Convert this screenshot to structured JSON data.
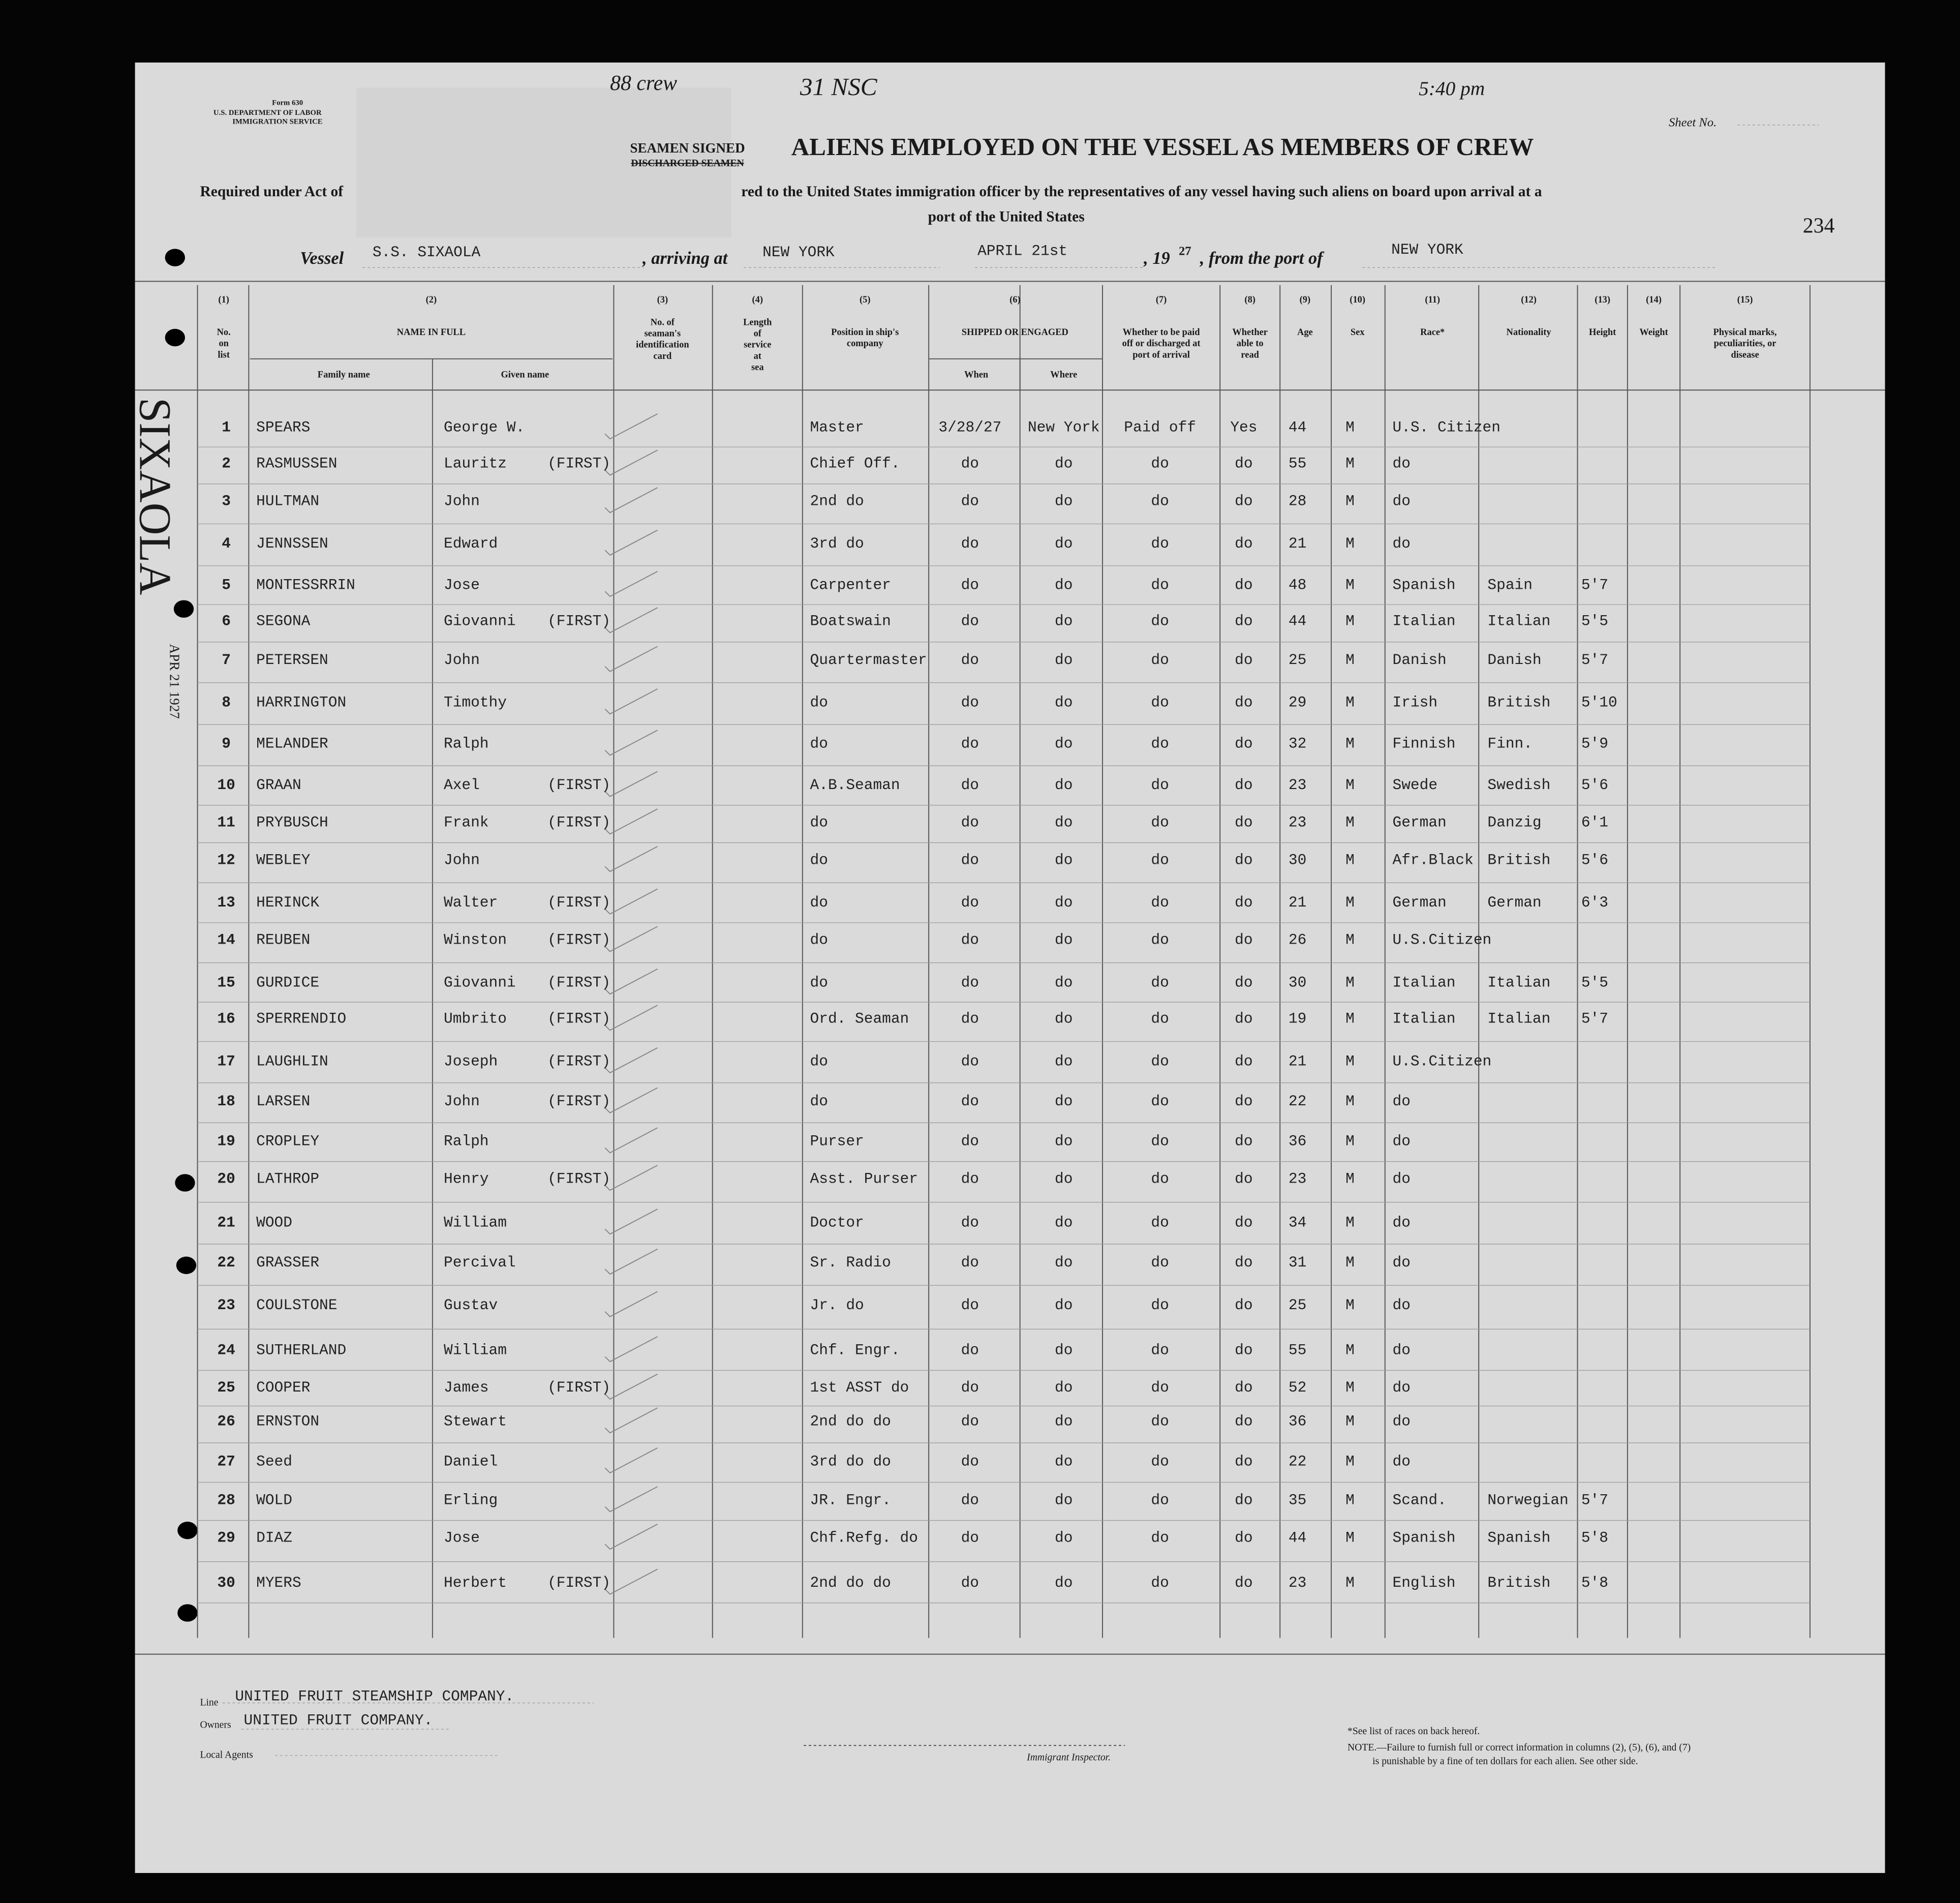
{
  "header": {
    "form": [
      "Form 630",
      "U.S. DEPARTMENT OF LABOR",
      "IMMIGRATION SERVICE"
    ],
    "stamp": [
      "SEAMEN SIGNED",
      "DISCHARGED SEAMEN"
    ],
    "title": "ALIENS EMPLOYED ON THE VESSEL AS MEMBERS OF CREW",
    "required": "Required under Act of",
    "subtitle": "red to the United States immigration officer by the representatives of any vessel having such aliens on board upon arrival at a",
    "subtitle2": "port of the United States",
    "sheet": "Sheet No.",
    "page_number": "234",
    "handwritten": [
      "88 crew",
      "31 NSC",
      "5:40 pm"
    ]
  },
  "vessel": {
    "label": "Vessel",
    "name": "S.S. SIXAOLA",
    "arriving_label": ", arriving at",
    "port": "NEW YORK",
    "date": "APRIL 21st",
    "year_label": ", 19",
    "year": "27",
    "from_label": ", from the port of",
    "from_port": "NEW YORK"
  },
  "margin": {
    "ship": "SIXAOLA",
    "date": "APR 21 1927"
  },
  "columns": [
    {
      "num": "(1)",
      "label": [
        "No.",
        "on",
        "list"
      ]
    },
    {
      "num": "(2)",
      "label": [
        "NAME IN FULL"
      ],
      "subs": [
        "Family name",
        "Given name"
      ]
    },
    {
      "num": "(3)",
      "label": [
        "No. of",
        "seaman's",
        "identification",
        "card"
      ]
    },
    {
      "num": "(4)",
      "label": [
        "Length",
        "of",
        "service",
        "at",
        "sea"
      ]
    },
    {
      "num": "(5)",
      "label": [
        "Position in ship's",
        "company"
      ]
    },
    {
      "num": "(6)",
      "label": [
        "SHIPPED OR ENGAGED"
      ],
      "subs": [
        "When",
        "Where"
      ]
    },
    {
      "num": "(7)",
      "label": [
        "Whether to be paid",
        "off or discharged at",
        "port of arrival"
      ]
    },
    {
      "num": "(8)",
      "label": [
        "Whether",
        "able to",
        "read"
      ]
    },
    {
      "num": "(9)",
      "label": [
        "Age"
      ]
    },
    {
      "num": "(10)",
      "label": [
        "Sex"
      ]
    },
    {
      "num": "(11)",
      "label": [
        "Race*"
      ]
    },
    {
      "num": "(12)",
      "label": [
        "Nationality"
      ]
    },
    {
      "num": "(13)",
      "label": [
        "Height"
      ]
    },
    {
      "num": "(14)",
      "label": [
        "Weight"
      ]
    },
    {
      "num": "(15)",
      "label": [
        "Physical marks,",
        "peculiarities, or",
        "disease"
      ]
    }
  ],
  "rows": [
    {
      "no": "1",
      "family": "SPEARS",
      "given": "George W.",
      "position": "Master",
      "when": "3/28/27",
      "where": "New York",
      "paid": "Paid off",
      "read": "Yes",
      "age": "44",
      "sex": "M",
      "race": "U.S. Citizen"
    },
    {
      "no": "2",
      "family": "RASMUSSEN",
      "given": "Lauritz",
      "first": "(FIRST)",
      "position": "Chief Off.",
      "when": "do",
      "where": "do",
      "paid": "do",
      "read": "do",
      "age": "55",
      "sex": "M",
      "race": "do"
    },
    {
      "no": "3",
      "family": "HULTMAN",
      "given": "John",
      "position": "2nd  do",
      "when": "do",
      "where": "do",
      "paid": "do",
      "read": "do",
      "age": "28",
      "sex": "M",
      "race": "do"
    },
    {
      "no": "4",
      "family": "JENNSSEN",
      "given": "Edward",
      "position": "3rd  do",
      "when": "do",
      "where": "do",
      "paid": "do",
      "read": "do",
      "age": "21",
      "sex": "M",
      "race": "do"
    },
    {
      "no": "5",
      "family": "MONTESSRRIN",
      "given": "Jose",
      "position": "Carpenter",
      "when": "do",
      "where": "do",
      "paid": "do",
      "read": "do",
      "age": "48",
      "sex": "M",
      "race": "Spanish",
      "nationality": "Spain",
      "height": "5'7"
    },
    {
      "no": "6",
      "family": "SEGONA",
      "given": "Giovanni",
      "first": "(FIRST)",
      "position": "Boatswain",
      "when": "do",
      "where": "do",
      "paid": "do",
      "read": "do",
      "age": "44",
      "sex": "M",
      "race": "Italian",
      "nationality": "Italian",
      "height": "5'5"
    },
    {
      "no": "7",
      "family": "PETERSEN",
      "given": "John",
      "position": "Quartermaster",
      "when": "do",
      "where": "do",
      "paid": "do",
      "read": "do",
      "age": "25",
      "sex": "M",
      "race": "Danish",
      "nationality": "Danish",
      "height": "5'7"
    },
    {
      "no": "8",
      "family": "HARRINGTON",
      "given": "Timothy",
      "position": "do",
      "when": "do",
      "where": "do",
      "paid": "do",
      "read": "do",
      "age": "29",
      "sex": "M",
      "race": "Irish",
      "nationality": "British",
      "height": "5'10"
    },
    {
      "no": "9",
      "family": "MELANDER",
      "given": "Ralph",
      "position": "do",
      "when": "do",
      "where": "do",
      "paid": "do",
      "read": "do",
      "age": "32",
      "sex": "M",
      "race": "Finnish",
      "nationality": "Finn.",
      "height": "5'9"
    },
    {
      "no": "10",
      "family": "GRAAN",
      "given": "Axel",
      "first": "(FIRST)",
      "position": "A.B.Seaman",
      "when": "do",
      "where": "do",
      "paid": "do",
      "read": "do",
      "age": "23",
      "sex": "M",
      "race": "Swede",
      "nationality": "Swedish",
      "height": "5'6"
    },
    {
      "no": "11",
      "family": "PRYBUSCH",
      "given": "Frank",
      "first": "(FIRST)",
      "position": "do",
      "when": "do",
      "where": "do",
      "paid": "do",
      "read": "do",
      "age": "23",
      "sex": "M",
      "race": "German",
      "nationality": "Danzig",
      "height": "6'1"
    },
    {
      "no": "12",
      "family": "WEBLEY",
      "given": "John",
      "position": "do",
      "when": "do",
      "where": "do",
      "paid": "do",
      "read": "do",
      "age": "30",
      "sex": "M",
      "race": "Afr.Black",
      "nationality": "British",
      "height": "5'6"
    },
    {
      "no": "13",
      "family": "HERINCK",
      "given": "Walter",
      "first": "(FIRST)",
      "position": "do",
      "when": "do",
      "where": "do",
      "paid": "do",
      "read": "do",
      "age": "21",
      "sex": "M",
      "race": "German",
      "nationality": "German",
      "height": "6'3"
    },
    {
      "no": "14",
      "family": "REUBEN",
      "given": "Winston",
      "first": "(FIRST)",
      "position": "do",
      "when": "do",
      "where": "do",
      "paid": "do",
      "read": "do",
      "age": "26",
      "sex": "M",
      "race": "U.S.Citizen"
    },
    {
      "no": "15",
      "family": "GURDICE",
      "given": "Giovanni",
      "first": "(FIRST)",
      "position": "do",
      "when": "do",
      "where": "do",
      "paid": "do",
      "read": "do",
      "age": "30",
      "sex": "M",
      "race": "Italian",
      "nationality": "Italian",
      "height": "5'5"
    },
    {
      "no": "16",
      "family": "SPERRENDIO",
      "given": "Umbrito",
      "first": "(FIRST)",
      "position": "Ord. Seaman",
      "when": "do",
      "where": "do",
      "paid": "do",
      "read": "do",
      "age": "19",
      "sex": "M",
      "race": "Italian",
      "nationality": "Italian",
      "height": "5'7"
    },
    {
      "no": "17",
      "family": "LAUGHLIN",
      "given": "Joseph",
      "first": "(FIRST)",
      "position": "do",
      "when": "do",
      "where": "do",
      "paid": "do",
      "read": "do",
      "age": "21",
      "sex": "M",
      "race": "U.S.Citizen"
    },
    {
      "no": "18",
      "family": "LARSEN",
      "given": "John",
      "first": "(FIRST)",
      "position": "do",
      "when": "do",
      "where": "do",
      "paid": "do",
      "read": "do",
      "age": "22",
      "sex": "M",
      "race": "do"
    },
    {
      "no": "19",
      "family": "CROPLEY",
      "given": "Ralph",
      "position": "Purser",
      "when": "do",
      "where": "do",
      "paid": "do",
      "read": "do",
      "age": "36",
      "sex": "M",
      "race": "do"
    },
    {
      "no": "20",
      "family": "LATHROP",
      "given": "Henry",
      "first": "(FIRST)",
      "position": "Asst. Purser",
      "when": "do",
      "where": "do",
      "paid": "do",
      "read": "do",
      "age": "23",
      "sex": "M",
      "race": "do"
    },
    {
      "no": "21",
      "family": "WOOD",
      "given": "William",
      "position": "Doctor",
      "when": "do",
      "where": "do",
      "paid": "do",
      "read": "do",
      "age": "34",
      "sex": "M",
      "race": "do"
    },
    {
      "no": "22",
      "family": "GRASSER",
      "given": "Percival",
      "position": "Sr. Radio",
      "when": "do",
      "where": "do",
      "paid": "do",
      "read": "do",
      "age": "31",
      "sex": "M",
      "race": "do"
    },
    {
      "no": "23",
      "family": "COULSTONE",
      "given": "Gustav",
      "position": "Jr. do",
      "when": "do",
      "where": "do",
      "paid": "do",
      "read": "do",
      "age": "25",
      "sex": "M",
      "race": "do"
    },
    {
      "no": "24",
      "family": "SUTHERLAND",
      "given": "William",
      "position": "Chf. Engr.",
      "when": "do",
      "where": "do",
      "paid": "do",
      "read": "do",
      "age": "55",
      "sex": "M",
      "race": "do"
    },
    {
      "no": "25",
      "family": "COOPER",
      "given": "James",
      "first": "(FIRST)",
      "position": "1st ASST do",
      "when": "do",
      "where": "do",
      "paid": "do",
      "read": "do",
      "age": "52",
      "sex": "M",
      "race": "do"
    },
    {
      "no": "26",
      "family": "ERNSTON",
      "given": "Stewart",
      "position": "2nd  do  do",
      "when": "do",
      "where": "do",
      "paid": "do",
      "read": "do",
      "age": "36",
      "sex": "M",
      "race": "do"
    },
    {
      "no": "27",
      "family": "Seed",
      "given": "Daniel",
      "position": "3rd  do  do",
      "when": "do",
      "where": "do",
      "paid": "do",
      "read": "do",
      "age": "22",
      "sex": "M",
      "race": "do"
    },
    {
      "no": "28",
      "family": "WOLD",
      "given": "Erling",
      "position": "JR.  Engr.",
      "when": "do",
      "where": "do",
      "paid": "do",
      "read": "do",
      "age": "35",
      "sex": "M",
      "race": "Scand.",
      "nationality": "Norwegian",
      "height": "5'7"
    },
    {
      "no": "29",
      "family": "DIAZ",
      "given": "Jose",
      "position": "Chf.Refg. do",
      "when": "do",
      "where": "do",
      "paid": "do",
      "read": "do",
      "age": "44",
      "sex": "M",
      "race": "Spanish",
      "nationality": "Spanish",
      "height": "5'8"
    },
    {
      "no": "30",
      "family": "MYERS",
      "given": "Herbert",
      "first": "(FIRST)",
      "position": "2nd  do  do",
      "when": "do",
      "where": "do",
      "paid": "do",
      "read": "do",
      "age": "23",
      "sex": "M",
      "race": "English",
      "nationality": "British",
      "height": "5'8"
    }
  ],
  "footer": {
    "line_label": "Line",
    "line": "UNITED FRUIT STEAMSHIP COMPANY.",
    "owners_label": "Owners",
    "owners": "UNITED FRUIT COMPANY.",
    "agents_label": "Local Agents",
    "inspector": "Immigrant Inspector.",
    "races_note": "*See list of races on back hereof.",
    "note": "NOTE.—Failure to furnish full or correct information in columns (2), (5), (6), and (7)",
    "note2": "is punishable by a fine of ten dollars for each alien.  See other side."
  }
}
